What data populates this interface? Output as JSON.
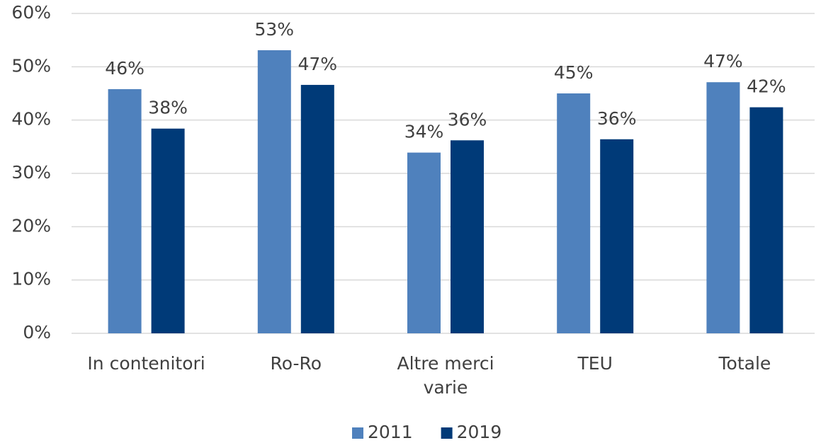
{
  "chart_data": {
    "type": "bar",
    "categories": [
      "In contenitori",
      "Ro-Ro",
      "Altre merci varie",
      "TEU",
      "Totale"
    ],
    "series": [
      {
        "name": "2011",
        "color": "#4f81bd",
        "values": [
          45.8,
          53.1,
          33.9,
          45,
          47.1
        ],
        "value_labels": [
          "46%",
          "53%",
          "34%",
          "45%",
          "47%"
        ]
      },
      {
        "name": "2019",
        "color": "#003a78",
        "values": [
          38.4,
          46.6,
          36.2,
          36.4,
          42.4
        ],
        "value_labels": [
          "38%",
          "47%",
          "36%",
          "36%",
          "42%"
        ]
      }
    ],
    "ylim": [
      0,
      60
    ],
    "yticks": [
      {
        "value": 0,
        "label": "0%"
      },
      {
        "value": 10,
        "label": "10%"
      },
      {
        "value": 20,
        "label": "20%"
      },
      {
        "value": 30,
        "label": "30%"
      },
      {
        "value": 40,
        "label": "40%"
      },
      {
        "value": 50,
        "label": "50%"
      },
      {
        "value": 60,
        "label": "60%"
      }
    ],
    "grid": true,
    "legend": "bottom"
  }
}
